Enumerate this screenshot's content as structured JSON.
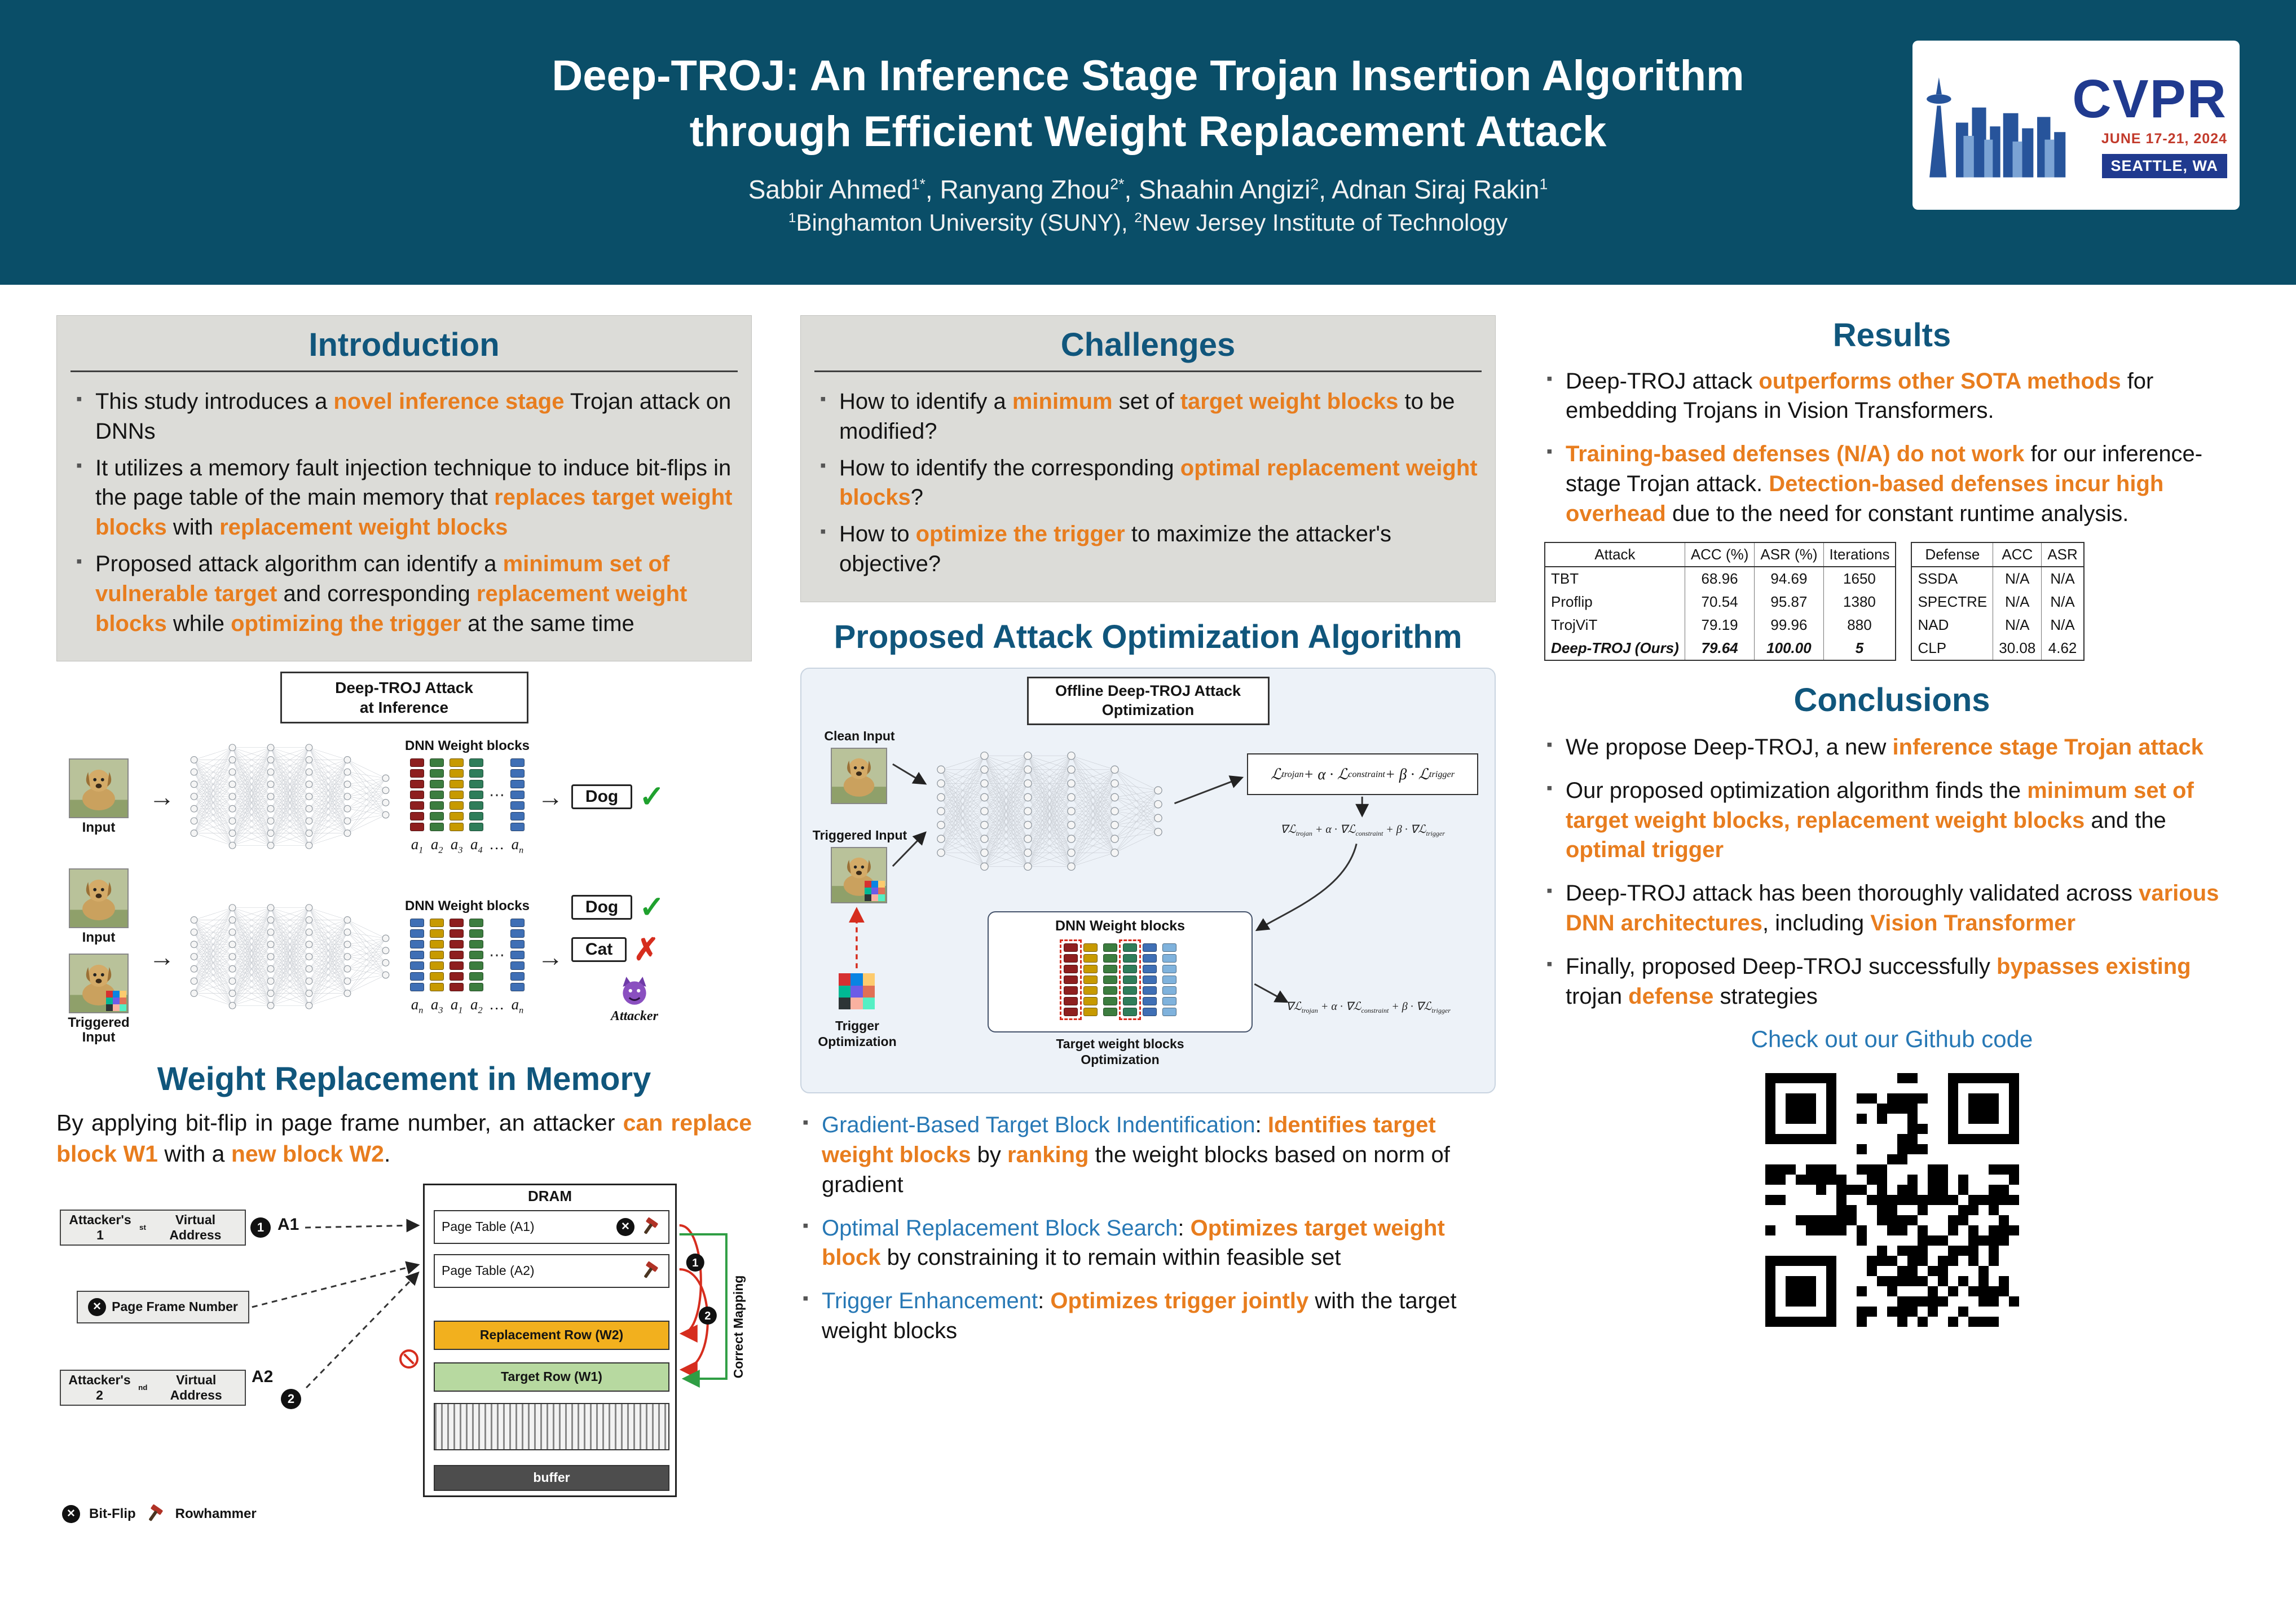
{
  "colors": {
    "header_bg": "#0a4e68",
    "heading_teal": "#10567c",
    "accent_orange": "#e87d1e",
    "link_blue": "#2778b5",
    "gray_box": "#dcdcd8"
  },
  "header": {
    "title_line1": "Deep-TROJ: An Inference Stage Trojan Insertion Algorithm",
    "title_line2": "through Efficient Weight Replacement Attack",
    "authors_html": "Sabbir Ahmed<sup>1*</sup>, Ranyang Zhou<sup>2*</sup>, Shaahin Angizi<sup>2</sup>, Adnan Siraj Rakin<sup>1</sup>",
    "affiliations_html": "<sup>1</sup>Binghamton University (SUNY), <sup>2</sup>New Jersey Institute of Technology",
    "logo": {
      "name": "CVPR",
      "dates": "JUNE 17-21, 2024",
      "location": "SEATTLE, WA"
    }
  },
  "intro": {
    "title": "Introduction",
    "bullets_html": [
      "This study introduces a <b class=\"o\">novel inference stage</b> Trojan attack on DNNs",
      "It utilizes a memory fault injection technique to induce bit-flips in the page table of the main memory that <b class=\"o\">replaces target weight blocks</b> with <b class=\"o\">replacement weight blocks</b>",
      "Proposed attack algorithm can identify a <b class=\"o\">minimum set of vulnerable target</b> and corresponding <b class=\"o\">replacement weight blocks</b> while <b class=\"o\">optimizing the trigger</b> at the same time"
    ]
  },
  "fig_inference": {
    "caption_html": "Deep-TROJ Attack<br>at Inference",
    "input_label": "Input",
    "triggered_input_label": "Triggered Input",
    "blocks_label": "DNN Weight blocks",
    "idx_clean_html": "a<sub>1</sub>&nbsp; a<sub>2</sub>&nbsp; a<sub>3</sub>&nbsp; a<sub>4</sub>&nbsp; … &nbsp;a<sub>n</sub>",
    "idx_trojan_html": "a<sub>n</sub>&nbsp; a<sub>3</sub>&nbsp; a<sub>1</sub>&nbsp; a<sub>2</sub>&nbsp; … &nbsp;a<sub>n</sub>",
    "out_dog": "Dog",
    "out_cat": "Cat",
    "attacker_label": "Attacker"
  },
  "memory": {
    "title": "Weight Replacement in Memory",
    "lead_html": "By applying bit-flip in page frame number, an attacker <b class=\"o\">can replace block W1</b> with a <b class=\"o\">new block W2</b>.",
    "fig": {
      "va1_html": "Attacker's 1<sup>st</sup> Virtual Address",
      "va2_html": "Attacker's 2<sup>nd</sup> Virtual Address",
      "pfn": "Page Frame Number",
      "a1": "A1",
      "a2": "A2",
      "badge1": "1",
      "badge2": "2",
      "dram": "DRAM",
      "pt1": "Page Table (A1)",
      "pt2": "Page Table (A2)",
      "w2": "Replacement Row (W2)",
      "w1": "Target Row (W1)",
      "buffer": "buffer",
      "correct_mapping": "Correct Mapping",
      "legend_bitflip": "Bit-Flip",
      "legend_rowhammer": "Rowhammer"
    }
  },
  "challenges": {
    "title": "Challenges",
    "bullets_html": [
      "How to identify a <b class=\"o\">minimum</b> set of <b class=\"o\">target weight blocks</b> to be modified?",
      "How to identify the corresponding <b class=\"o\">optimal replacement weight blocks</b>?",
      "How to <b class=\"o\">optimize the trigger</b> to maximize the attacker's objective?"
    ]
  },
  "attack_opt": {
    "title": "Proposed Attack Optimization Algorithm",
    "fig": {
      "caption_html": "Offline Deep-TROJ Attack<br>Optimization",
      "clean_input": "Clean Input",
      "triggered_input": "Triggered Input",
      "trigger_opt": "Trigger Optimization",
      "blocks_label": "DNN Weight blocks",
      "target_opt_html": "Target weight blocks<br>Optimization",
      "loss_html": "ℒ<sub>trojan</sub> + α · ℒ<sub>constraint</sub> + β · ℒ<sub>trigger</sub>",
      "grad_html": "∇ℒ<sub>trojan</sub> + α · ∇ℒ<sub>constraint</sub> + β · ∇ℒ<sub>trigger</sub>"
    },
    "bullets_html": [
      "<span class=\"bl\">Gradient-Based Target Block Indentification</span>: <b class=\"o\">Identifies target weight blocks</b> by <b class=\"o\">ranking</b> the weight blocks based on norm of gradient",
      "<span class=\"bl\">Optimal Replacement Block Search</span>: <b class=\"o\">Optimizes target weight block</b> by constraining it to remain within feasible set",
      "<span class=\"bl\">Trigger Enhancement</span>: <b class=\"o\">Optimizes trigger jointly</b> with the target weight blocks"
    ]
  },
  "results": {
    "title": "Results",
    "bullets_html": [
      "Deep-TROJ attack <b class=\"o\">outperforms other SOTA methods</b> for embedding Trojans in Vision Transformers.",
      "<b class=\"o\">Training-based defenses (N/A) do not work</b> for our inference-stage Trojan attack. <b class=\"o\">Detection-based defenses incur high overhead</b> due to the need for constant runtime analysis."
    ],
    "table1": {
      "headers": [
        "Attack",
        "ACC (%)",
        "ASR (%)",
        "Iterations"
      ],
      "rows": [
        [
          "TBT",
          "68.96",
          "94.69",
          "1650"
        ],
        [
          "Proflip",
          "70.54",
          "95.87",
          "1380"
        ],
        [
          "TrojViT",
          "79.19",
          "99.96",
          "880"
        ],
        [
          "Deep-TROJ (Ours)",
          "79.64",
          "100.00",
          "5"
        ]
      ]
    },
    "table2": {
      "headers": [
        "Defense",
        "ACC",
        "ASR"
      ],
      "rows": [
        [
          "SSDA",
          "N/A",
          "N/A"
        ],
        [
          "SPECTRE",
          "N/A",
          "N/A"
        ],
        [
          "NAD",
          "N/A",
          "N/A"
        ],
        [
          "CLP",
          "30.08",
          "4.62"
        ]
      ]
    }
  },
  "conclusions": {
    "title": "Conclusions",
    "bullets_html": [
      "We propose Deep-TROJ, a new <b class=\"o\">inference stage Trojan attack</b>",
      "Our proposed optimization algorithm finds the <b class=\"o\">minimum set of target weight blocks, replacement weight blocks</b> and the <b class=\"o\">optimal trigger</b>",
      "Deep-TROJ attack has been thoroughly validated across <b class=\"o\">various DNN architectures</b>, including <b class=\"o\">Vision Transformer</b>",
      "Finally, proposed Deep-TROJ successfully <b class=\"o\">bypasses existing</b> trojan <b class=\"o\">defense</b> strategies"
    ],
    "github": "Check out our Github code"
  }
}
